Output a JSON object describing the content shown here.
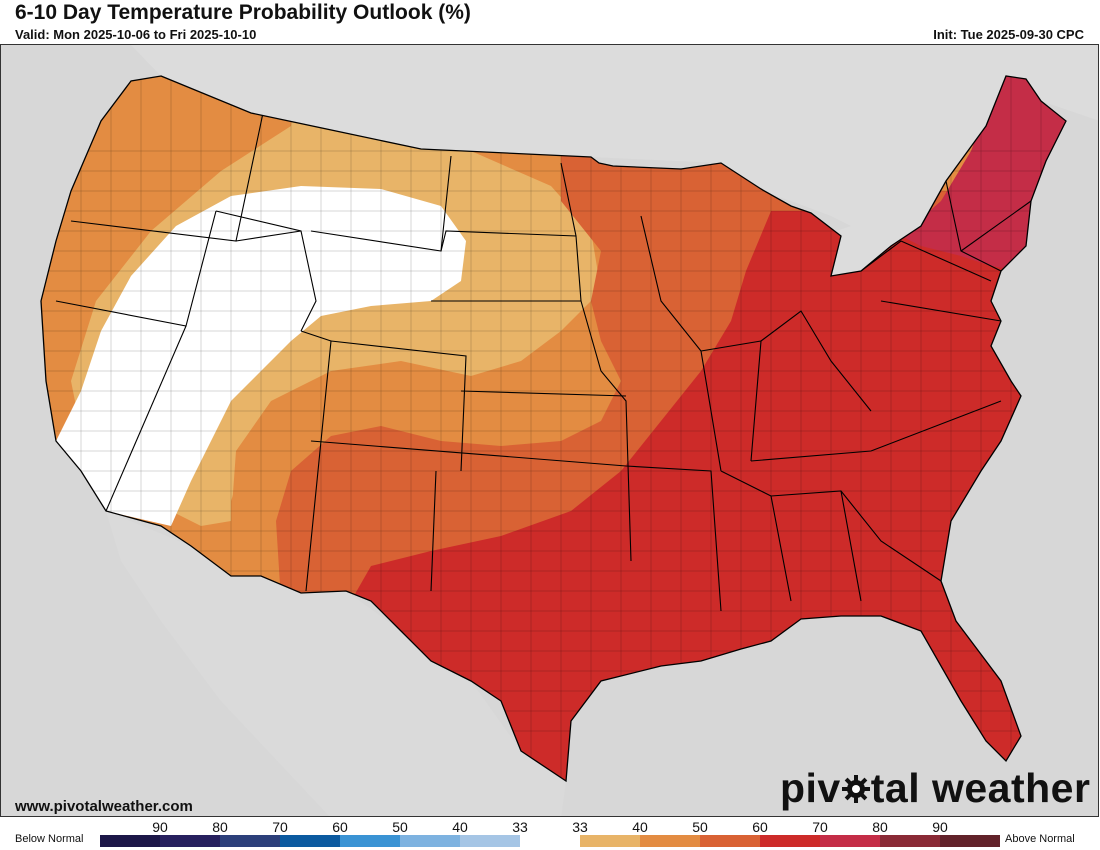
{
  "header": {
    "title": "6-10 Day Temperature Probability Outlook (%)",
    "valid": "Valid: Mon 2025-10-06 to Fri 2025-10-10",
    "init": "Init: Tue 2025-09-30 CPC"
  },
  "footer": {
    "website": "www.pivotalweather.com",
    "brand_left": "piv",
    "brand_right": "tal weather"
  },
  "legend": {
    "below_label": "Below Normal",
    "above_label": "Above Normal",
    "ticks": [
      "90",
      "80",
      "70",
      "60",
      "50",
      "40",
      "33",
      "33",
      "40",
      "50",
      "60",
      "70",
      "80",
      "90"
    ],
    "colors": [
      "#1c1748",
      "#27205e",
      "#2c3f7a",
      "#0b5aa0",
      "#3a93d4",
      "#7db2e0",
      "#a5c5e5",
      "#ffffff",
      "#e8b468",
      "#e38c42",
      "#d96234",
      "#cd2b29",
      "#c42d47",
      "#8a2a36",
      "#62222a"
    ]
  },
  "map": {
    "land_color": "#ffffff",
    "ocean_color": "#d7d7d7",
    "categories": [
      {
        "label": "33",
        "color": "#ffffff"
      },
      {
        "label": "40",
        "color": "#e8b468"
      },
      {
        "label": "50",
        "color": "#e38c42"
      },
      {
        "label": "60",
        "color": "#d96234"
      },
      {
        "label": "70",
        "color": "#cd2b29"
      },
      {
        "label": "80",
        "color": "#c42d47"
      }
    ]
  }
}
